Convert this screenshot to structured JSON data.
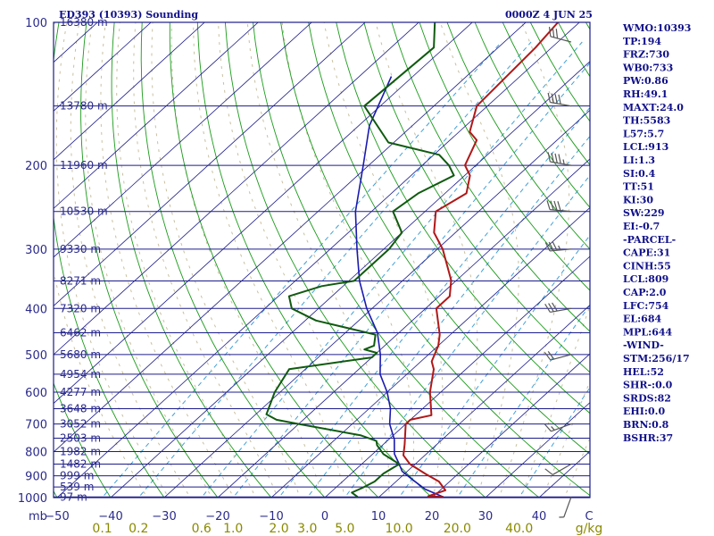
{
  "header": {
    "station": "ED393 (10393) Sounding",
    "time": "0000Z  4 JUN 25"
  },
  "indices": [
    "WMO:10393",
    "TP:194",
    "FRZ:730",
    "WB0:733",
    "PW:0.86",
    "RH:49.1",
    "MAXT:24.0",
    "TH:5583",
    "L57:5.7",
    "LCL:913",
    "LI:1.3",
    "SI:0.4",
    "TT:51",
    "KI:30",
    "SW:229",
    "EI:-0.7",
    "-PARCEL-",
    "CAPE:31",
    "CINH:55",
    "LCL:809",
    "CAP:2.0",
    "LFC:754",
    "EL:684",
    "MPL:644",
    "-WIND-",
    "STM:256/17",
    "HEL:52",
    "SHR-:0.0",
    "SRDS:82",
    "EHI:0.0",
    "BRN:0.8",
    "BSHR:37"
  ],
  "colors": {
    "isobar": "#1c1c8c",
    "isotherm": "#1c1c8c",
    "dry_adiabat": "#1a9a1a",
    "moist_adiabat": "#c9c0a0",
    "mixing_ratio": "#40a0d8",
    "temperature": "#b01818",
    "dewpoint": "#105a10",
    "parcel": "#1a1ab0",
    "wind_barb": "#555555"
  },
  "chart_data": {
    "type": "skew-t",
    "xunit": "C",
    "pressure_levels": [
      100,
      200,
      300,
      400,
      500,
      600,
      700,
      800,
      900,
      1000
    ],
    "pressure_label_mb": "mb",
    "temperature_ticks": [
      -50,
      -40,
      -30,
      -20,
      -10,
      0,
      10,
      20,
      30,
      40
    ],
    "temperature_tick_labels": [
      "−50",
      "−40",
      "−30",
      "−20",
      "−10",
      "0",
      "10",
      "20",
      "30",
      "40"
    ],
    "mixing_ratio_labels": [
      "0.1",
      "0.2",
      "0.6",
      "1.0",
      "2.0",
      "3.0",
      "5.0",
      "10.0",
      "20.0",
      "40.0"
    ],
    "mixing_ratio_unit": "g/kg",
    "height_levels": [
      {
        "p": 100,
        "label": "16380 m"
      },
      {
        "p": 150,
        "label": "13780 m"
      },
      {
        "p": 200,
        "label": "11960 m"
      },
      {
        "p": 250,
        "label": "10530 m"
      },
      {
        "p": 300,
        "label": "9330 m"
      },
      {
        "p": 350,
        "label": "8271 m"
      },
      {
        "p": 400,
        "label": "7320 m"
      },
      {
        "p": 450,
        "label": "6462 m"
      },
      {
        "p": 500,
        "label": "5680 m"
      },
      {
        "p": 550,
        "label": "4954 m"
      },
      {
        "p": 600,
        "label": "4277 m"
      },
      {
        "p": 650,
        "label": "3648 m"
      },
      {
        "p": 700,
        "label": "3052 m"
      },
      {
        "p": 750,
        "label": "2503 m"
      },
      {
        "p": 800,
        "label": "1982 m"
      },
      {
        "p": 850,
        "label": "1482 m"
      },
      {
        "p": 900,
        "label": "999 m"
      },
      {
        "p": 950,
        "label": "539 m"
      },
      {
        "p": 997,
        "label": "97 m"
      }
    ],
    "temperature_profile": [
      [
        997,
        22
      ],
      [
        993,
        19
      ],
      [
        965,
        21
      ],
      [
        925,
        18
      ],
      [
        892,
        14
      ],
      [
        850,
        9
      ],
      [
        815,
        6
      ],
      [
        773,
        4
      ],
      [
        700,
        0
      ],
      [
        686,
        0
      ],
      [
        671,
        3
      ],
      [
        600,
        -2
      ],
      [
        537,
        -6
      ],
      [
        517,
        -8
      ],
      [
        479,
        -10
      ],
      [
        454,
        -12
      ],
      [
        400,
        -18
      ],
      [
        377,
        -18
      ],
      [
        349,
        -21
      ],
      [
        300,
        -29
      ],
      [
        277,
        -34
      ],
      [
        250,
        -38
      ],
      [
        229,
        -36
      ],
      [
        210,
        -39
      ],
      [
        200,
        -42
      ],
      [
        177,
        -45
      ],
      [
        170,
        -48
      ],
      [
        150,
        -52
      ],
      [
        113,
        -53
      ],
      [
        100,
        -54
      ]
    ],
    "dewpoint_profile": [
      [
        997,
        6
      ],
      [
        976,
        4
      ],
      [
        954,
        5
      ],
      [
        925,
        6
      ],
      [
        890,
        6
      ],
      [
        850,
        7
      ],
      [
        810,
        2
      ],
      [
        776,
        -1
      ],
      [
        760,
        -2
      ],
      [
        740,
        -6
      ],
      [
        700,
        -20
      ],
      [
        686,
        -25
      ],
      [
        668,
        -28
      ],
      [
        600,
        -31
      ],
      [
        537,
        -33
      ],
      [
        507,
        -20
      ],
      [
        502,
        -20
      ],
      [
        496,
        -20
      ],
      [
        488,
        -23
      ],
      [
        479,
        -22
      ],
      [
        454,
        -24
      ],
      [
        424,
        -38
      ],
      [
        400,
        -45
      ],
      [
        377,
        -48
      ],
      [
        359,
        -44
      ],
      [
        350,
        -39
      ],
      [
        300,
        -39
      ],
      [
        277,
        -40
      ],
      [
        250,
        -46
      ],
      [
        229,
        -45
      ],
      [
        210,
        -42
      ],
      [
        200,
        -45
      ],
      [
        190,
        -49
      ],
      [
        179,
        -61
      ],
      [
        150,
        -73
      ],
      [
        113,
        -72
      ],
      [
        100,
        -77
      ]
    ],
    "parcel_profile": [
      [
        997,
        22
      ],
      [
        960,
        17
      ],
      [
        920,
        13
      ],
      [
        880,
        9
      ],
      [
        850,
        7
      ],
      [
        809,
        4
      ],
      [
        754,
        1
      ],
      [
        700,
        -3
      ],
      [
        650,
        -6
      ],
      [
        600,
        -10
      ],
      [
        550,
        -15
      ],
      [
        500,
        -19
      ],
      [
        450,
        -24
      ],
      [
        400,
        -31
      ],
      [
        350,
        -38
      ],
      [
        300,
        -45
      ],
      [
        250,
        -53
      ],
      [
        200,
        -61
      ],
      [
        165,
        -68
      ],
      [
        130,
        -74
      ]
    ],
    "wind_barbs": [
      {
        "p": 110,
        "dir": 285,
        "kt": 30
      },
      {
        "p": 150,
        "dir": 280,
        "kt": 40
      },
      {
        "p": 200,
        "dir": 280,
        "kt": 45
      },
      {
        "p": 250,
        "dir": 275,
        "kt": 40
      },
      {
        "p": 300,
        "dir": 265,
        "kt": 35
      },
      {
        "p": 400,
        "dir": 260,
        "kt": 30
      },
      {
        "p": 500,
        "dir": 255,
        "kt": 20
      },
      {
        "p": 700,
        "dir": 250,
        "kt": 15
      },
      {
        "p": 850,
        "dir": 240,
        "kt": 10
      },
      {
        "p": 997,
        "dir": 200,
        "kt": 5
      }
    ]
  }
}
